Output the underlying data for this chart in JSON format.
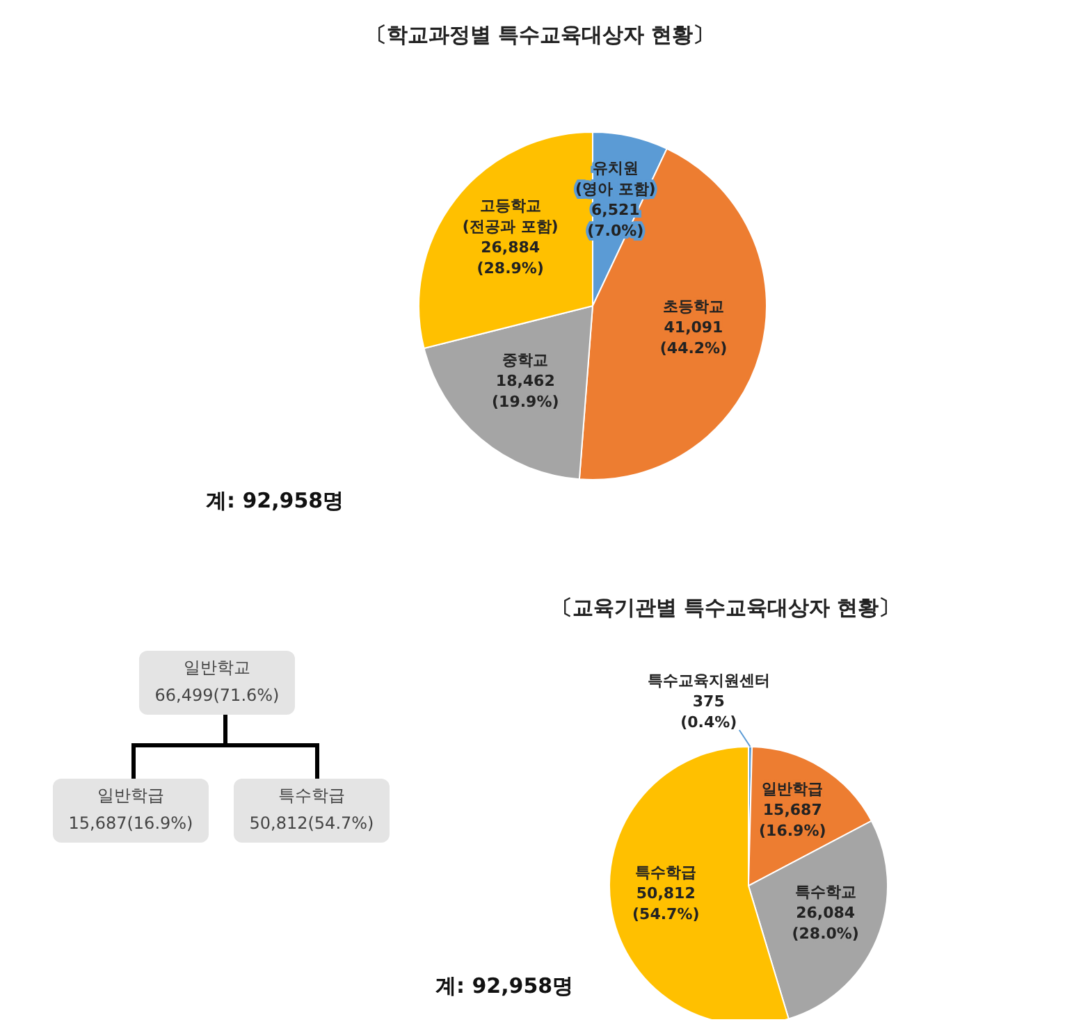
{
  "chart_data": [
    {
      "type": "pie",
      "title": "〔학교과정별 특수교육대상자 현황〕",
      "categories": [
        "유치원 (영아 포함)",
        "초등학교",
        "중학교",
        "고등학교 (전공과 포함)"
      ],
      "values": [
        6521,
        41091,
        18462,
        26884
      ],
      "colors": [
        "#5b9bd5",
        "#ed7d31",
        "#a5a5a5",
        "#ffc000"
      ],
      "value_labels": [
        "6,521 (7.0%)",
        "41,091 (44.2%)",
        "18,462 (19.9%)",
        "26,884 (28.9%)"
      ],
      "annotations": [
        "계: 92,958명"
      ]
    },
    {
      "type": "other",
      "annotations": [
        "일반학교 66,499(71.6%)",
        "일반학급 15,687(16.9%)",
        "특수학급 50,812(54.7%)"
      ]
    },
    {
      "type": "pie",
      "title": "〔교육기관별 특수교육대상자 현황〕",
      "categories": [
        "특수교육지원센터",
        "일반학급",
        "특수학교",
        "특수학급"
      ],
      "values": [
        375,
        15687,
        26084,
        50812
      ],
      "colors": [
        "#5b9bd5",
        "#ed7d31",
        "#a5a5a5",
        "#ffc000"
      ],
      "value_labels": [
        "375 (0.4%)",
        "15,687 (16.9%)",
        "26,084 (28.0%)",
        "50,812 (54.7%)"
      ],
      "annotations": [
        "계: 92,958명"
      ]
    }
  ]
}
